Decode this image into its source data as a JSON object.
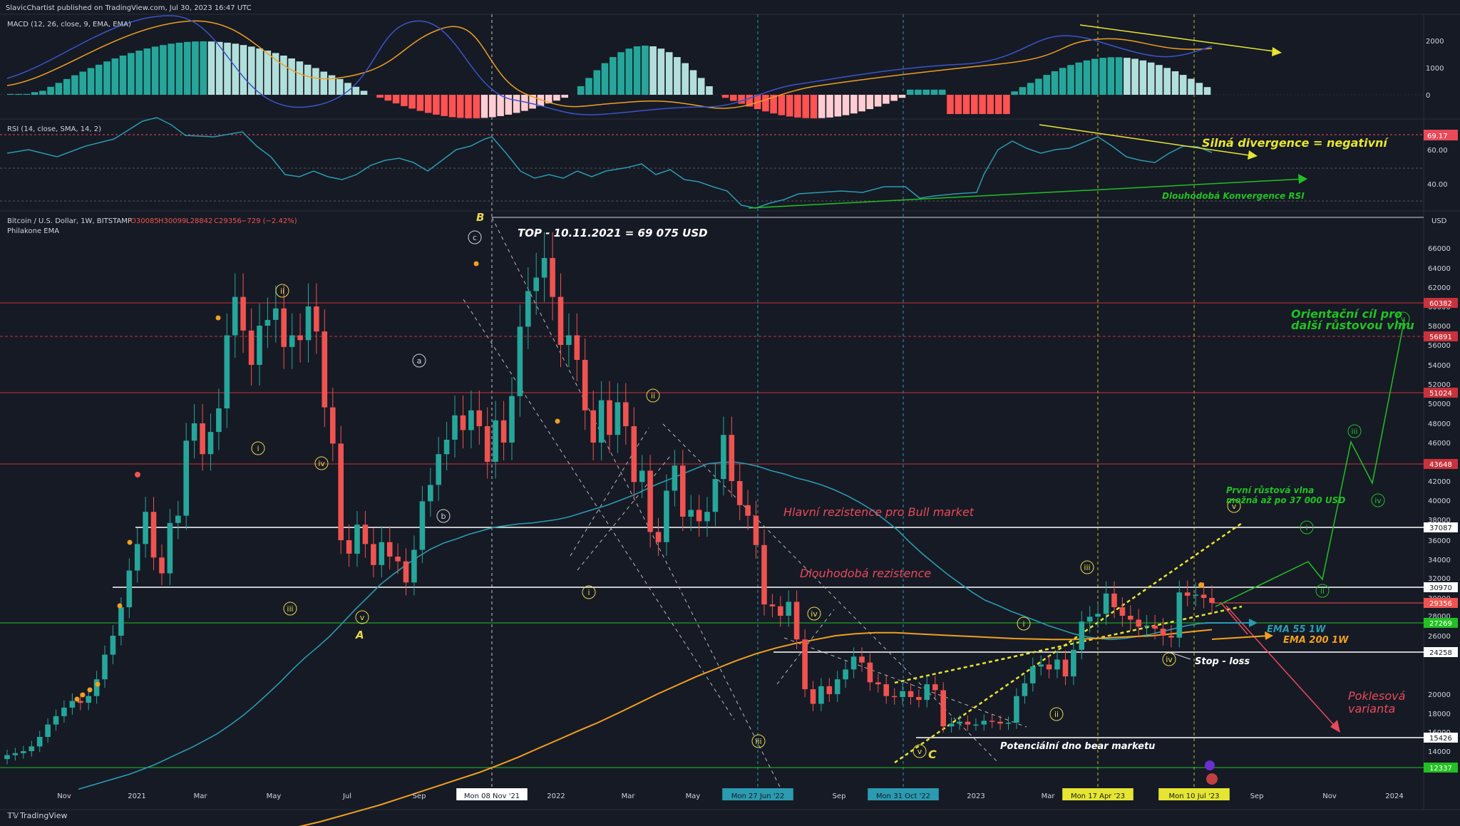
{
  "header": {
    "published": "SlavicChartist published on TradingView.com, Jul 30, 2023 16:47 UTC"
  },
  "footer": {
    "brand": "TradingView"
  },
  "macd": {
    "title": "MACD (12, 26, close, 9, EMA, EMA)",
    "ticks": [
      "2000",
      "1000",
      "0"
    ]
  },
  "rsi": {
    "title": "RSI (14, close, SMA, 14, 2)",
    "ticks": [
      "69.17",
      "60.00",
      "40.00"
    ],
    "annotations": {
      "divergence": "Silná divergence = negativní",
      "convergence": "Dlouhodobá Konvergence RSI"
    }
  },
  "main": {
    "symbol_line": "Bitcoin / U.S. Dollar, 1W, BITSTAMP",
    "ohlc": {
      "o": "O30085",
      "h": "H30099",
      "l": "L28842",
      "c": "C29356",
      "chg": "−729 (−2.42%)"
    },
    "indicator": "Philakone EMA",
    "currency": "USD"
  },
  "annotations": {
    "top": "TOP - 10.11.2021 = 69 075 USD",
    "main_res": "Hlavní rezistence pro Bull market",
    "long_res": "Dlouhodobá rezistence",
    "target_1": "Orientační cíl pro",
    "target_2": "další růstovou vlnu",
    "first_wave_1": "První růstová vlna",
    "first_wave_2": "možná až po 37 000 USD",
    "ema55": "EMA 55 1W",
    "ema200": "EMA 200 1W",
    "stop": "Stop - loss",
    "bear_1": "Poklesová",
    "bear_2": "varianta",
    "bottom": "Potenciální dno bear marketu",
    "A": "A",
    "B": "B",
    "C": "C"
  },
  "colors": {
    "background": "#161a25",
    "bull": "#26a69a",
    "bear": "#ef5350",
    "ema55": "#2a9bb0",
    "ema200": "#f0a020",
    "resistance": "#c8323c",
    "support_green": "#22c022",
    "channel": "#e6e632",
    "label_yellow": "#e8d84a",
    "label_red": "#e84a5a",
    "label_green": "#3ec03e"
  },
  "chart_data": {
    "type": "candlestick",
    "symbol": "Bitcoin / U.S. Dollar",
    "timeframe": "1W",
    "exchange": "BITSTAMP",
    "y_axis_ticks": [
      66000,
      64000,
      62000,
      60000,
      58000,
      56000,
      54000,
      52000,
      50000,
      48000,
      46000,
      44000,
      42000,
      40000,
      38000,
      36000,
      34000,
      32000,
      30000,
      28000,
      26000,
      20000,
      18000,
      16000,
      14000
    ],
    "x_axis_ticks": [
      "Nov",
      "2021",
      "Mar",
      "May",
      "Jul",
      "Sep",
      "Mon 08 Nov '21",
      "2022",
      "Mar",
      "May",
      "Mon 27 Jun '22",
      "Sep",
      "Mon 31 Oct '22",
      "2023",
      "Mar",
      "Mon 17 Apr '23",
      "Mon 10 Jul '23",
      "Sep",
      "Nov",
      "2024"
    ],
    "levels": [
      {
        "label": "60382",
        "value": 60382,
        "color": "#c8323c"
      },
      {
        "label": "56891",
        "value": 56891,
        "color": "#c8323c"
      },
      {
        "label": "51024",
        "value": 51024,
        "color": "#c8323c"
      },
      {
        "label": "43648",
        "value": 43648,
        "color": "#c8323c"
      },
      {
        "label": "37087",
        "value": 37087,
        "color": "#ffffff"
      },
      {
        "label": "30970",
        "value": 30970,
        "color": "#ffffff"
      },
      {
        "label": "29356",
        "value": 29356,
        "color": "#ef5350"
      },
      {
        "label": "27269",
        "value": 27269,
        "color": "#22c022"
      },
      {
        "label": "24258",
        "value": 24258,
        "color": "#ffffff"
      },
      {
        "label": "15426",
        "value": 15426,
        "color": "#ffffff"
      },
      {
        "label": "12337",
        "value": 12337,
        "color": "#22c022"
      }
    ],
    "candles_close": [
      13600,
      13800,
      14000,
      14500,
      15500,
      16800,
      17700,
      18600,
      19300,
      19100,
      19800,
      21500,
      24000,
      26000,
      28900,
      32800,
      35600,
      38800,
      34200,
      32500,
      37600,
      38400,
      46200,
      48000,
      44800,
      47100,
      49500,
      57000,
      61000,
      57500,
      54000,
      58000,
      58600,
      59800,
      55800,
      57000,
      56500,
      60000,
      57400,
      49600,
      45900,
      36000,
      34600,
      37400,
      35600,
      33400,
      35800,
      34300,
      33800,
      31500,
      35000,
      39900,
      41600,
      44800,
      46300,
      48800,
      47300,
      49300,
      47700,
      44000,
      48300,
      46000,
      50700,
      57900,
      61600,
      63000,
      65000,
      61000,
      56000,
      57000,
      54500,
      49300,
      46000,
      50300,
      46800,
      50100,
      47700,
      41900,
      43000,
      36700,
      35800,
      41000,
      43500,
      38300,
      39000,
      37800,
      38800,
      42200,
      46800,
      42000,
      39500,
      38400,
      35500,
      29200,
      29000,
      28000,
      29500,
      25600,
      20500,
      19000,
      20800,
      20000,
      21500,
      22500,
      23800,
      23200,
      21200,
      21000,
      19800,
      19700,
      20300,
      19700,
      19400,
      21000,
      20400,
      16600,
      16900,
      17100,
      16800,
      16800,
      17200,
      17100,
      16900,
      17000,
      19800,
      21100,
      22800,
      23000,
      22500,
      23500,
      21800,
      24500,
      27400,
      27900,
      28200,
      30400,
      28900,
      28000,
      27600,
      26900,
      27000,
      26700,
      26000,
      25800,
      30500,
      30200,
      30300,
      30000,
      29356
    ],
    "ema55": [
      10000,
      10400,
      10800,
      11200,
      11600,
      12100,
      12600,
      13200,
      13800,
      14400,
      15100,
      15800,
      16700,
      17700,
      18800,
      20000,
      21200,
      22500,
      23700,
      24800,
      26000,
      27300,
      28700,
      30100,
      31300,
      32400,
      33400,
      34300,
      35100,
      35700,
      36100,
      36500,
      36800,
      37100,
      37300,
      37500,
      37600,
      37800,
      38000,
      38300,
      38700,
      39100,
      39500,
      40000,
      40500,
      41100,
      41700,
      42200,
      42700,
      43200,
      43700,
      43900,
      44000,
      43700,
      43400,
      43000,
      42700,
      42300,
      42000,
      41600,
      41100,
      40500,
      39800,
      39000,
      38000,
      36900,
      35800,
      34600,
      33500,
      32400,
      31400,
      30500,
      29700,
      29100,
      28500,
      28000,
      27500,
      27000,
      26600,
      26200,
      25900,
      25700,
      25600,
      25700,
      25900,
      26100,
      26400,
      26700,
      27000,
      27200,
      27269
    ],
    "ema200": [
      4000,
      4200,
      4500,
      4800,
      5200,
      5600,
      6000,
      6500,
      7100,
      7700,
      8300,
      9000,
      9700,
      10400,
      11100,
      11800,
      12600,
      13400,
      14300,
      15200,
      16100,
      17000,
      18000,
      19000,
      20000,
      20900,
      21800,
      22600,
      23400,
      24100,
      24700,
      25200,
      25600,
      26000,
      26200,
      26300,
      26300,
      26200,
      26100,
      26000,
      25900,
      25800,
      25700,
      25650,
      25600,
      25600,
      25700,
      25800,
      25900,
      26000,
      26200,
      26400,
      26600
    ],
    "last_close": 29356
  }
}
